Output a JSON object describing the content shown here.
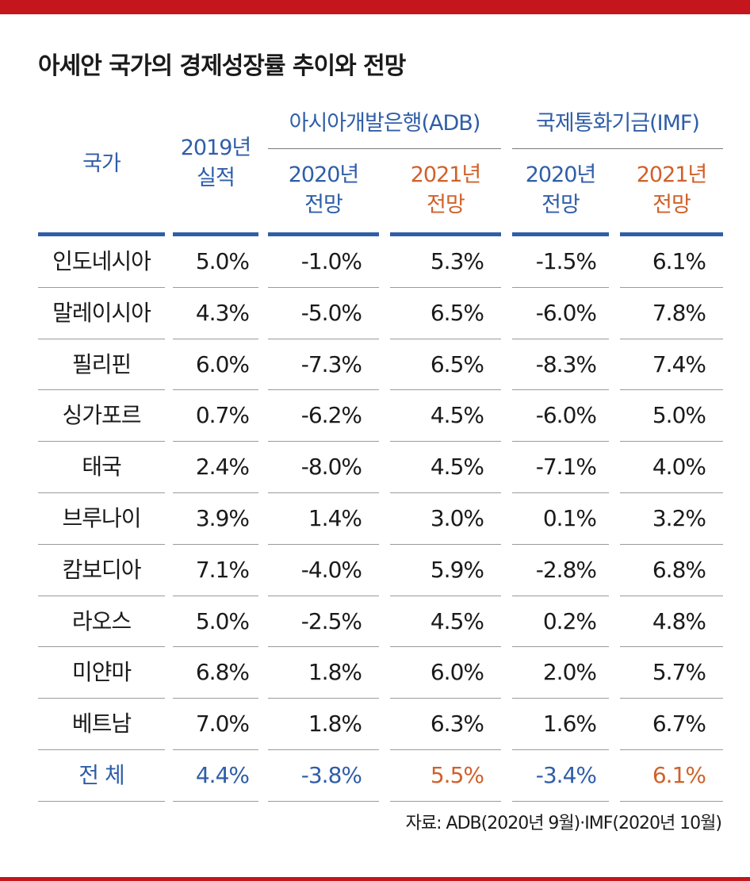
{
  "title": "아세안 국가의 경제성장률 추이와 전망",
  "headers": {
    "country": "국가",
    "actual_2019_line1": "2019년",
    "actual_2019_line2": "실적",
    "adb_group": "아시아개발은행(ADB)",
    "imf_group": "국제통화기금(IMF)",
    "adb_2020_line1": "2020년",
    "adb_2020_line2": "전망",
    "adb_2021_line1": "2021년",
    "adb_2021_line2": "전망",
    "imf_2020_line1": "2020년",
    "imf_2020_line2": "전망",
    "imf_2021_line1": "2021년",
    "imf_2021_line2": "전망"
  },
  "rows": [
    {
      "country": "인도네시아",
      "actual_2019": "5.0%",
      "adb_2020": "-1.0%",
      "adb_2021": "5.3%",
      "imf_2020": "-1.5%",
      "imf_2021": "6.1%"
    },
    {
      "country": "말레이시아",
      "actual_2019": "4.3%",
      "adb_2020": "-5.0%",
      "adb_2021": "6.5%",
      "imf_2020": "-6.0%",
      "imf_2021": "7.8%"
    },
    {
      "country": "필리핀",
      "actual_2019": "6.0%",
      "adb_2020": "-7.3%",
      "adb_2021": "6.5%",
      "imf_2020": "-8.3%",
      "imf_2021": "7.4%"
    },
    {
      "country": "싱가포르",
      "actual_2019": "0.7%",
      "adb_2020": "-6.2%",
      "adb_2021": "4.5%",
      "imf_2020": "-6.0%",
      "imf_2021": "5.0%"
    },
    {
      "country": "태국",
      "actual_2019": "2.4%",
      "adb_2020": "-8.0%",
      "adb_2021": "4.5%",
      "imf_2020": "-7.1%",
      "imf_2021": "4.0%"
    },
    {
      "country": "브루나이",
      "actual_2019": "3.9%",
      "adb_2020": "1.4%",
      "adb_2021": "3.0%",
      "imf_2020": "0.1%",
      "imf_2021": "3.2%"
    },
    {
      "country": "캄보디아",
      "actual_2019": "7.1%",
      "adb_2020": "-4.0%",
      "adb_2021": "5.9%",
      "imf_2020": "-2.8%",
      "imf_2021": "6.8%"
    },
    {
      "country": "라오스",
      "actual_2019": "5.0%",
      "adb_2020": "-2.5%",
      "adb_2021": "4.5%",
      "imf_2020": "0.2%",
      "imf_2021": "4.8%"
    },
    {
      "country": "미얀마",
      "actual_2019": "6.8%",
      "adb_2020": "1.8%",
      "adb_2021": "6.0%",
      "imf_2020": "2.0%",
      "imf_2021": "5.7%"
    },
    {
      "country": "베트남",
      "actual_2019": "7.0%",
      "adb_2020": "1.8%",
      "adb_2021": "6.3%",
      "imf_2020": "1.6%",
      "imf_2021": "6.7%"
    },
    {
      "country": "전 체",
      "actual_2019": "4.4%",
      "adb_2020": "-3.8%",
      "adb_2021": "5.5%",
      "imf_2020": "-3.4%",
      "imf_2021": "6.1%"
    }
  ],
  "source": "자료: ADB(2020년 9월)·IMF(2020년 10월)",
  "colors": {
    "accent_red": "#c4161c",
    "header_blue": "#2f5ea8",
    "forecast_orange": "#d0612a"
  }
}
